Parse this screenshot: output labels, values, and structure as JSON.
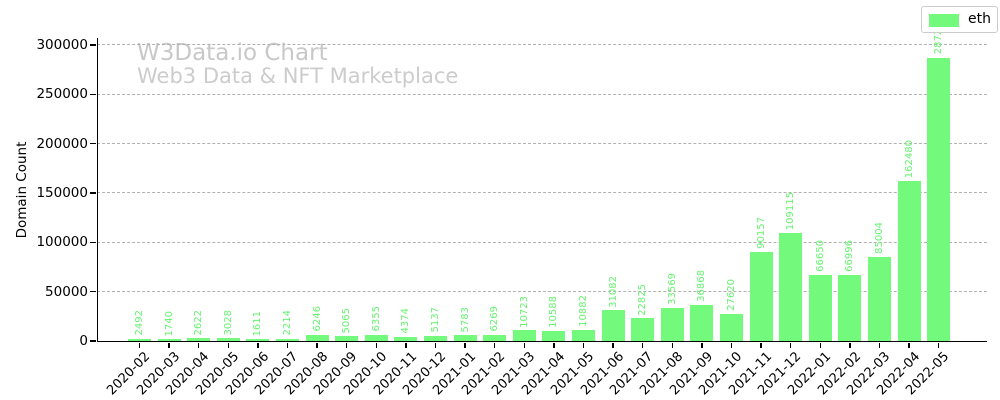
{
  "figure": {
    "watermark_line1": "W3Data.io Chart",
    "watermark_line2": "Web3 Data & NFT Marketplace"
  },
  "legend": {
    "label": "eth"
  },
  "axes": {
    "ylabel": "Domain Count",
    "ytick_labels": [
      "0",
      "50000",
      "100000",
      "150000",
      "200000",
      "250000",
      "300000"
    ]
  },
  "colors": {
    "bar": "#73f97b",
    "value_label": "#66f370",
    "grid": "#b1b1b1",
    "axis": "#000000",
    "watermark": "#c8c8c8",
    "legend_border": "#cccccc"
  },
  "chart_data": {
    "type": "bar",
    "title": "",
    "xlabel": "",
    "ylabel": "Domain Count",
    "categories": [
      "2020-02",
      "2020-03",
      "2020-04",
      "2020-05",
      "2020-06",
      "2020-07",
      "2020-08",
      "2020-09",
      "2020-10",
      "2020-11",
      "2020-12",
      "2021-01",
      "2021-02",
      "2021-03",
      "2021-04",
      "2021-05",
      "2021-06",
      "2021-07",
      "2021-08",
      "2021-09",
      "2021-10",
      "2021-11",
      "2021-12",
      "2022-01",
      "2022-02",
      "2022-03",
      "2022-04",
      "2022-05"
    ],
    "series": [
      {
        "name": "eth",
        "values": [
          2492,
          1740,
          2622,
          3028,
          1611,
          2214,
          6246,
          5065,
          6355,
          4374,
          5137,
          5783,
          6269,
          10723,
          10588,
          10882,
          31082,
          22825,
          33569,
          36868,
          27620,
          90157,
          109115,
          66650,
          66996,
          85004,
          162480,
          287285
        ]
      }
    ],
    "yticks": [
      0,
      50000,
      100000,
      150000,
      200000,
      250000,
      300000
    ],
    "ylim": [
      0,
      307000
    ],
    "grid": "horizontal-dashed",
    "legend_position": "upper-right",
    "value_labels": true,
    "value_label_rotation": 90,
    "xtick_rotation": 45
  }
}
